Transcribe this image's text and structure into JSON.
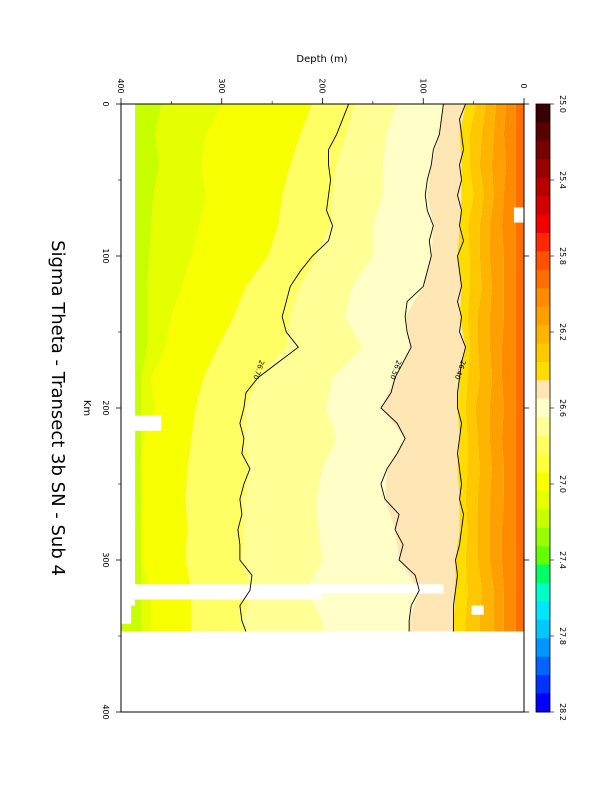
{
  "title": "Sigma Theta - Transect 3b SN - Sub 4",
  "chart_data": {
    "type": "heatmap",
    "title": "Sigma Theta - Transect 3b SN - Sub 4",
    "xlabel": "Km",
    "ylabel": "Depth (m)",
    "xlim": [
      0,
      400
    ],
    "ylim": [
      0,
      400
    ],
    "x_ticks": [
      "0",
      "100",
      "200",
      "300",
      "400"
    ],
    "y_ticks": [
      "0",
      "100",
      "200",
      "300",
      "400"
    ],
    "colorbar": {
      "labels": [
        "25.0",
        "25.4",
        "25.8",
        "26.2",
        "26.6",
        "27.0",
        "27.4",
        "27.8",
        "28.2"
      ],
      "min": 25.0,
      "max": 28.2,
      "step": 0.1,
      "colors": [
        "#3a0000",
        "#5a0000",
        "#780000",
        "#960000",
        "#b40000",
        "#d20000",
        "#f00000",
        "#ff2800",
        "#ff5000",
        "#ff6e00",
        "#ff8c00",
        "#ffa000",
        "#ffb400",
        "#ffc800",
        "#ffdc00",
        "#ffe6b4",
        "#ffffc8",
        "#ffff96",
        "#ffff64",
        "#ffff3c",
        "#f8ff00",
        "#e6ff00",
        "#c8ff00",
        "#96ff00",
        "#64ff00",
        "#00ff64",
        "#00ffc8",
        "#00e6ff",
        "#00c8ff",
        "#0096ff",
        "#0064ff",
        "#0032ff",
        "#0000ff"
      ]
    },
    "contours": [
      {
        "level": "26.40",
        "points": [
          [
            0,
            58
          ],
          [
            10,
            64
          ],
          [
            20,
            62
          ],
          [
            30,
            60
          ],
          [
            40,
            64
          ],
          [
            50,
            62
          ],
          [
            60,
            66
          ],
          [
            70,
            62
          ],
          [
            80,
            64
          ],
          [
            90,
            60
          ],
          [
            100,
            66
          ],
          [
            110,
            64
          ],
          [
            120,
            62
          ],
          [
            130,
            66
          ],
          [
            140,
            62
          ],
          [
            150,
            64
          ],
          [
            160,
            58
          ],
          [
            170,
            62
          ],
          [
            180,
            64
          ],
          [
            190,
            66
          ],
          [
            200,
            66
          ],
          [
            210,
            62
          ],
          [
            220,
            64
          ],
          [
            230,
            66
          ],
          [
            240,
            64
          ],
          [
            250,
            62
          ],
          [
            260,
            64
          ],
          [
            270,
            60
          ],
          [
            280,
            62
          ],
          [
            290,
            64
          ],
          [
            300,
            68
          ],
          [
            310,
            66
          ],
          [
            320,
            68
          ],
          [
            330,
            70
          ],
          [
            340,
            70
          ],
          [
            347,
            70
          ]
        ]
      },
      {
        "level": "26.50",
        "points": [
          [
            0,
            80
          ],
          [
            10,
            82
          ],
          [
            20,
            84
          ],
          [
            30,
            90
          ],
          [
            40,
            92
          ],
          [
            50,
            96
          ],
          [
            60,
            98
          ],
          [
            70,
            96
          ],
          [
            80,
            90
          ],
          [
            90,
            94
          ],
          [
            100,
            92
          ],
          [
            110,
            96
          ],
          [
            120,
            100
          ],
          [
            130,
            116
          ],
          [
            140,
            118
          ],
          [
            150,
            116
          ],
          [
            160,
            112
          ],
          [
            170,
            120
          ],
          [
            180,
            128
          ],
          [
            190,
            132
          ],
          [
            200,
            142
          ],
          [
            210,
            126
          ],
          [
            220,
            118
          ],
          [
            230,
            126
          ],
          [
            240,
            136
          ],
          [
            250,
            142
          ],
          [
            260,
            138
          ],
          [
            270,
            124
          ],
          [
            280,
            128
          ],
          [
            290,
            120
          ],
          [
            300,
            124
          ],
          [
            310,
            108
          ],
          [
            320,
            104
          ],
          [
            330,
            112
          ],
          [
            340,
            114
          ],
          [
            347,
            114
          ]
        ]
      },
      {
        "level": "26.70",
        "points": [
          [
            0,
            174
          ],
          [
            10,
            180
          ],
          [
            20,
            186
          ],
          [
            30,
            194
          ],
          [
            40,
            194
          ],
          [
            50,
            192
          ],
          [
            60,
            194
          ],
          [
            70,
            196
          ],
          [
            80,
            190
          ],
          [
            90,
            194
          ],
          [
            100,
            210
          ],
          [
            110,
            222
          ],
          [
            120,
            232
          ],
          [
            130,
            236
          ],
          [
            140,
            240
          ],
          [
            150,
            236
          ],
          [
            160,
            224
          ],
          [
            170,
            244
          ],
          [
            180,
            264
          ],
          [
            190,
            276
          ],
          [
            200,
            278
          ],
          [
            210,
            282
          ],
          [
            220,
            278
          ],
          [
            230,
            280
          ],
          [
            240,
            272
          ],
          [
            250,
            278
          ],
          [
            260,
            282
          ],
          [
            270,
            280
          ],
          [
            280,
            284
          ],
          [
            290,
            282
          ],
          [
            300,
            282
          ],
          [
            310,
            270
          ],
          [
            320,
            272
          ],
          [
            330,
            282
          ],
          [
            340,
            280
          ],
          [
            347,
            276
          ]
        ]
      }
    ]
  }
}
